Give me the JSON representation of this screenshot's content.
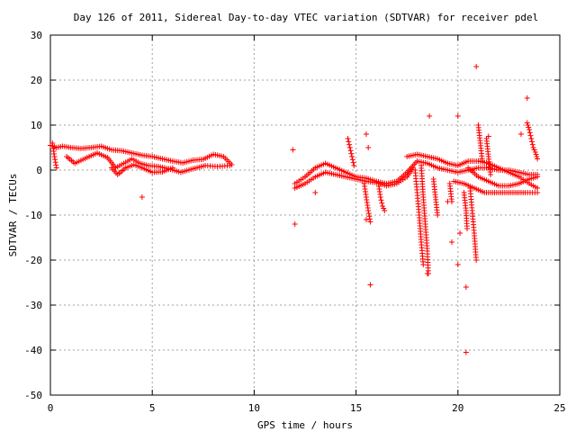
{
  "chart_data": {
    "type": "scatter",
    "title": "Day 126 of 2011, Sidereal Day-to-day VTEC variation (SDTVAR) for receiver pdel",
    "xlabel": "GPS time / hours",
    "ylabel": "SDTVAR / TECUs",
    "xlim": [
      0,
      25
    ],
    "ylim": [
      -50,
      30
    ],
    "xticks": [
      0,
      5,
      10,
      15,
      20,
      25
    ],
    "yticks": [
      -50,
      -40,
      -30,
      -20,
      -10,
      0,
      10,
      20,
      30
    ],
    "grid": true,
    "marker": "+",
    "color": "#ff0000",
    "series": [
      {
        "bands": [
          [
            [
              0.0,
              5.5
            ],
            [
              0.3,
              5.0
            ],
            [
              0.6,
              5.3
            ],
            [
              1.0,
              5.0
            ],
            [
              1.5,
              4.8
            ],
            [
              2.0,
              5.0
            ],
            [
              2.5,
              5.3
            ],
            [
              3.0,
              4.5
            ],
            [
              3.5,
              4.3
            ],
            [
              4.0,
              3.8
            ],
            [
              4.5,
              3.3
            ],
            [
              5.0,
              3.0
            ],
            [
              5.5,
              2.5
            ],
            [
              6.0,
              2.0
            ],
            [
              6.5,
              1.6
            ],
            [
              7.0,
              2.2
            ],
            [
              7.5,
              2.4
            ],
            [
              8.0,
              3.5
            ],
            [
              8.5,
              3.0
            ],
            [
              8.9,
              1.2
            ]
          ],
          [
            [
              0.8,
              3.0
            ],
            [
              1.2,
              1.5
            ],
            [
              1.8,
              2.8
            ],
            [
              2.3,
              3.8
            ],
            [
              2.8,
              2.8
            ],
            [
              3.2,
              0.5
            ],
            [
              3.6,
              1.5
            ],
            [
              4.0,
              2.5
            ],
            [
              4.4,
              1.5
            ],
            [
              4.8,
              1.0
            ],
            [
              5.3,
              0.8
            ],
            [
              5.8,
              0.3
            ],
            [
              6.4,
              -0.5
            ],
            [
              7.0,
              0.3
            ],
            [
              7.6,
              1.0
            ],
            [
              8.2,
              0.8
            ],
            [
              8.8,
              1.0
            ]
          ],
          [
            [
              3.0,
              0.5
            ],
            [
              3.3,
              -1.0
            ],
            [
              3.7,
              0.5
            ],
            [
              4.1,
              1.2
            ],
            [
              4.5,
              0.5
            ],
            [
              5.0,
              -0.5
            ],
            [
              5.5,
              -0.4
            ],
            [
              6.0,
              0.5
            ]
          ],
          [
            [
              12.0,
              -3.0
            ],
            [
              12.5,
              -1.5
            ],
            [
              13.0,
              0.5
            ],
            [
              13.5,
              1.5
            ],
            [
              14.0,
              0.5
            ],
            [
              14.5,
              -0.5
            ],
            [
              15.0,
              -1.5
            ],
            [
              15.5,
              -1.8
            ],
            [
              16.0,
              -2.5
            ],
            [
              16.5,
              -3.0
            ],
            [
              17.0,
              -2.5
            ],
            [
              17.5,
              -0.5
            ],
            [
              18.0,
              2.0
            ],
            [
              18.5,
              1.5
            ],
            [
              19.0,
              0.5
            ],
            [
              19.5,
              0.0
            ],
            [
              20.0,
              -0.5
            ],
            [
              20.5,
              0.0
            ],
            [
              21.0,
              0.5
            ],
            [
              21.5,
              0.5
            ],
            [
              22.0,
              0.0
            ],
            [
              22.5,
              0.0
            ],
            [
              23.0,
              -0.5
            ],
            [
              23.5,
              -1.0
            ],
            [
              23.9,
              -1.0
            ]
          ],
          [
            [
              12.0,
              -4.0
            ],
            [
              12.5,
              -3.0
            ],
            [
              13.0,
              -1.5
            ],
            [
              13.5,
              -0.5
            ],
            [
              14.0,
              -1.0
            ],
            [
              14.5,
              -1.5
            ],
            [
              15.0,
              -2.0
            ],
            [
              15.5,
              -2.5
            ],
            [
              16.0,
              -2.8
            ],
            [
              16.5,
              -3.5
            ],
            [
              17.0,
              -3.0
            ],
            [
              17.5,
              -1.5
            ],
            [
              17.8,
              0.5
            ]
          ],
          [
            [
              17.5,
              3.0
            ],
            [
              18.0,
              3.5
            ],
            [
              18.5,
              3.0
            ],
            [
              19.0,
              2.5
            ],
            [
              19.5,
              1.5
            ],
            [
              20.0,
              1.0
            ],
            [
              20.5,
              2.0
            ],
            [
              21.0,
              2.0
            ],
            [
              21.5,
              1.5
            ],
            [
              22.0,
              0.5
            ],
            [
              22.5,
              -0.5
            ],
            [
              23.0,
              -1.5
            ],
            [
              23.5,
              -3.0
            ],
            [
              23.9,
              -4.0
            ]
          ],
          [
            [
              19.8,
              -2.5
            ],
            [
              20.3,
              -3.0
            ],
            [
              20.8,
              -4.0
            ],
            [
              21.3,
              -5.0
            ],
            [
              21.8,
              -5.0
            ],
            [
              22.3,
              -5.0
            ],
            [
              22.8,
              -5.0
            ],
            [
              23.3,
              -5.0
            ],
            [
              23.9,
              -5.0
            ]
          ],
          [
            [
              20.5,
              0.5
            ],
            [
              21.0,
              -1.5
            ],
            [
              21.5,
              -2.5
            ],
            [
              22.0,
              -3.5
            ],
            [
              22.5,
              -3.5
            ],
            [
              23.0,
              -3.0
            ],
            [
              23.5,
              -2.0
            ],
            [
              23.9,
              -1.5
            ]
          ]
        ],
        "spikes": [
          [
            [
              18.2,
              1.0
            ],
            [
              18.3,
              -6.0
            ],
            [
              18.4,
              -12.0
            ],
            [
              18.5,
              -18.0
            ],
            [
              18.55,
              -23.0
            ]
          ],
          [
            [
              17.9,
              0.0
            ],
            [
              18.0,
              -5.0
            ],
            [
              18.1,
              -10.0
            ],
            [
              18.2,
              -16.0
            ],
            [
              18.3,
              -21.0
            ]
          ],
          [
            [
              14.6,
              7.0
            ],
            [
              14.7,
              5.0
            ],
            [
              14.8,
              3.0
            ],
            [
              14.9,
              1.0
            ]
          ],
          [
            [
              15.4,
              -3.0
            ],
            [
              15.5,
              -6.0
            ],
            [
              15.6,
              -9.0
            ],
            [
              15.7,
              -11.5
            ]
          ],
          [
            [
              16.1,
              -3.0
            ],
            [
              16.2,
              -6.0
            ],
            [
              16.3,
              -8.0
            ],
            [
              16.4,
              -9.0
            ]
          ],
          [
            [
              20.6,
              -4.0
            ],
            [
              20.7,
              -9.0
            ],
            [
              20.8,
              -14.0
            ],
            [
              20.9,
              -20.0
            ]
          ],
          [
            [
              21.4,
              7.0
            ],
            [
              21.5,
              3.0
            ],
            [
              21.6,
              -1.0
            ]
          ],
          [
            [
              21.0,
              10.0
            ],
            [
              21.1,
              6.0
            ],
            [
              21.2,
              2.0
            ]
          ],
          [
            [
              23.4,
              10.5
            ],
            [
              23.5,
              9.0
            ],
            [
              23.6,
              7.0
            ],
            [
              23.7,
              5.0
            ],
            [
              23.8,
              4.0
            ],
            [
              23.9,
              2.5
            ]
          ],
          [
            [
              18.8,
              -2.0
            ],
            [
              18.9,
              -6.0
            ],
            [
              19.0,
              -10.0
            ]
          ],
          [
            [
              19.6,
              -3.0
            ],
            [
              19.7,
              -7.0
            ]
          ],
          [
            [
              0.1,
              6.0
            ],
            [
              0.2,
              3.0
            ],
            [
              0.3,
              0.5
            ]
          ],
          [
            [
              20.3,
              -5.0
            ],
            [
              20.4,
              -9.0
            ],
            [
              20.45,
              -13.0
            ]
          ]
        ],
        "points": [
          [
            20.9,
            23.0
          ],
          [
            23.4,
            16.0
          ],
          [
            18.6,
            12.0
          ],
          [
            20.0,
            12.0
          ],
          [
            15.5,
            8.0
          ],
          [
            11.9,
            4.5
          ],
          [
            15.6,
            5.0
          ],
          [
            20.4,
            -40.5
          ],
          [
            15.7,
            -25.5
          ],
          [
            20.4,
            -26.0
          ],
          [
            20.0,
            -21.0
          ],
          [
            19.7,
            -16.0
          ],
          [
            18.5,
            -23.0
          ],
          [
            12.0,
            -12.0
          ],
          [
            13.0,
            -5.0
          ],
          [
            4.5,
            -6.0
          ],
          [
            19.5,
            -7.0
          ],
          [
            20.1,
            -14.0
          ],
          [
            23.1,
            8.0
          ],
          [
            21.5,
            7.5
          ],
          [
            15.5,
            -11.0
          ]
        ]
      }
    ]
  }
}
